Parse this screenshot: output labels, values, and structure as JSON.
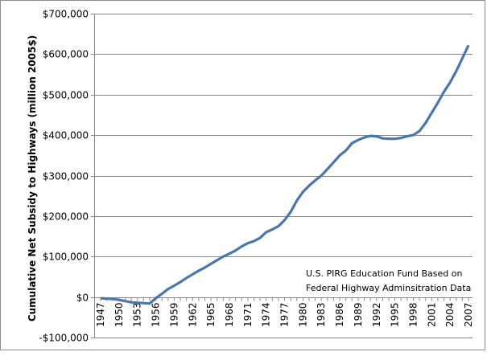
{
  "chart_data": {
    "type": "line",
    "title": "",
    "xlabel": "",
    "ylabel": "Cumulative Net Subsidy to Highways (million 2005$)",
    "ylim": [
      -100000,
      700000
    ],
    "yticks": [
      -100000,
      0,
      100000,
      200000,
      300000,
      400000,
      500000,
      600000,
      700000
    ],
    "ytick_labels": [
      "-$100,000",
      "$0",
      "$100,000",
      "$200,000",
      "$300,000",
      "$400,000",
      "$500,000",
      "$600,000",
      "$700,000"
    ],
    "xtick_labels": [
      "1947",
      "1950",
      "1953",
      "1956",
      "1959",
      "1962",
      "1965",
      "1968",
      "1971",
      "1974",
      "1977",
      "1980",
      "1983",
      "1986",
      "1989",
      "1992",
      "1995",
      "1998",
      "2001",
      "2004",
      "2007"
    ],
    "grid": "horizontal",
    "legend": "none",
    "annotation": [
      "U.S. PIRG Education Fund Based on",
      "Federal Highway Adminsitration Data"
    ],
    "line_color": "#4a76ae",
    "x": [
      1947,
      1948,
      1949,
      1950,
      1951,
      1952,
      1953,
      1954,
      1955,
      1956,
      1957,
      1958,
      1959,
      1960,
      1961,
      1962,
      1963,
      1964,
      1965,
      1966,
      1967,
      1968,
      1969,
      1970,
      1971,
      1972,
      1973,
      1974,
      1975,
      1976,
      1977,
      1978,
      1979,
      1980,
      1981,
      1982,
      1983,
      1984,
      1985,
      1986,
      1987,
      1988,
      1989,
      1990,
      1991,
      1992,
      1993,
      1994,
      1995,
      1996,
      1997,
      1998,
      1999,
      2000,
      2001,
      2002,
      2003,
      2004,
      2005,
      2006,
      2007
    ],
    "series": [
      {
        "values": [
          -3000,
          -4000,
          -5000,
          -7000,
          -10000,
          -13000,
          -14000,
          -15000,
          -16000,
          -3000,
          8000,
          20000,
          28000,
          37000,
          47000,
          56000,
          65000,
          73000,
          82000,
          91000,
          100000,
          107000,
          115000,
          125000,
          133000,
          138000,
          146000,
          160000,
          167000,
          175000,
          190000,
          210000,
          238000,
          260000,
          275000,
          288000,
          300000,
          316000,
          333000,
          350000,
          362000,
          380000,
          388000,
          394000,
          398000,
          397000,
          392000,
          391000,
          391000,
          393000,
          397000,
          400000,
          410000,
          430000,
          455000,
          480000,
          507000,
          530000,
          558000,
          590000,
          622000
        ]
      }
    ]
  }
}
